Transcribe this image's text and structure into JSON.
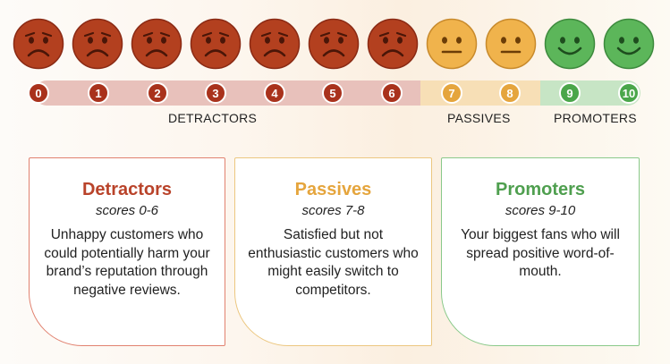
{
  "scale": {
    "scores": [
      "0",
      "1",
      "2",
      "3",
      "4",
      "5",
      "6",
      "7",
      "8",
      "9",
      "10"
    ],
    "groups": [
      "detractor",
      "detractor",
      "detractor",
      "detractor",
      "detractor",
      "detractor",
      "detractor",
      "passive",
      "passive",
      "promoter",
      "promoter"
    ],
    "face_icons": [
      "sad-face-icon",
      "sad-face-icon",
      "sad-face-icon",
      "sad-face-icon",
      "sad-face-icon",
      "sad-face-icon",
      "sad-face-icon",
      "neutral-face-icon",
      "neutral-face-icon",
      "happy-face-icon",
      "happy-face-icon"
    ],
    "labels": {
      "detractors": "DETRACTORS",
      "passives": "PASSIVES",
      "promoters": "PROMOTERS"
    }
  },
  "cards": {
    "detractors": {
      "title": "Detractors",
      "subtitle": "scores 0-6",
      "body": "Unhappy customers who could potentially harm your brand’s reputation through negative reviews."
    },
    "passives": {
      "title": "Passives",
      "subtitle": "scores 7-8",
      "body": "Satisfied but not enthusiastic customers who might easily switch to competitors."
    },
    "promoters": {
      "title": "Promoters",
      "subtitle": "scores 9-10",
      "body": "Your biggest fans who will spread positive word-of-mouth."
    }
  },
  "colors": {
    "detractor": "#a9321c",
    "passive": "#e5a53d",
    "promoter": "#4aa64a"
  }
}
